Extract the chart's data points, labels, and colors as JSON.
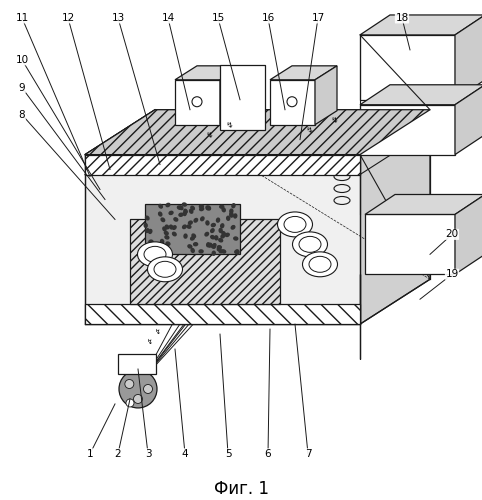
{
  "title": "Фиг. 1",
  "bg_color": "#ffffff",
  "line_color": "#1a1a1a",
  "title_fontsize": 12
}
